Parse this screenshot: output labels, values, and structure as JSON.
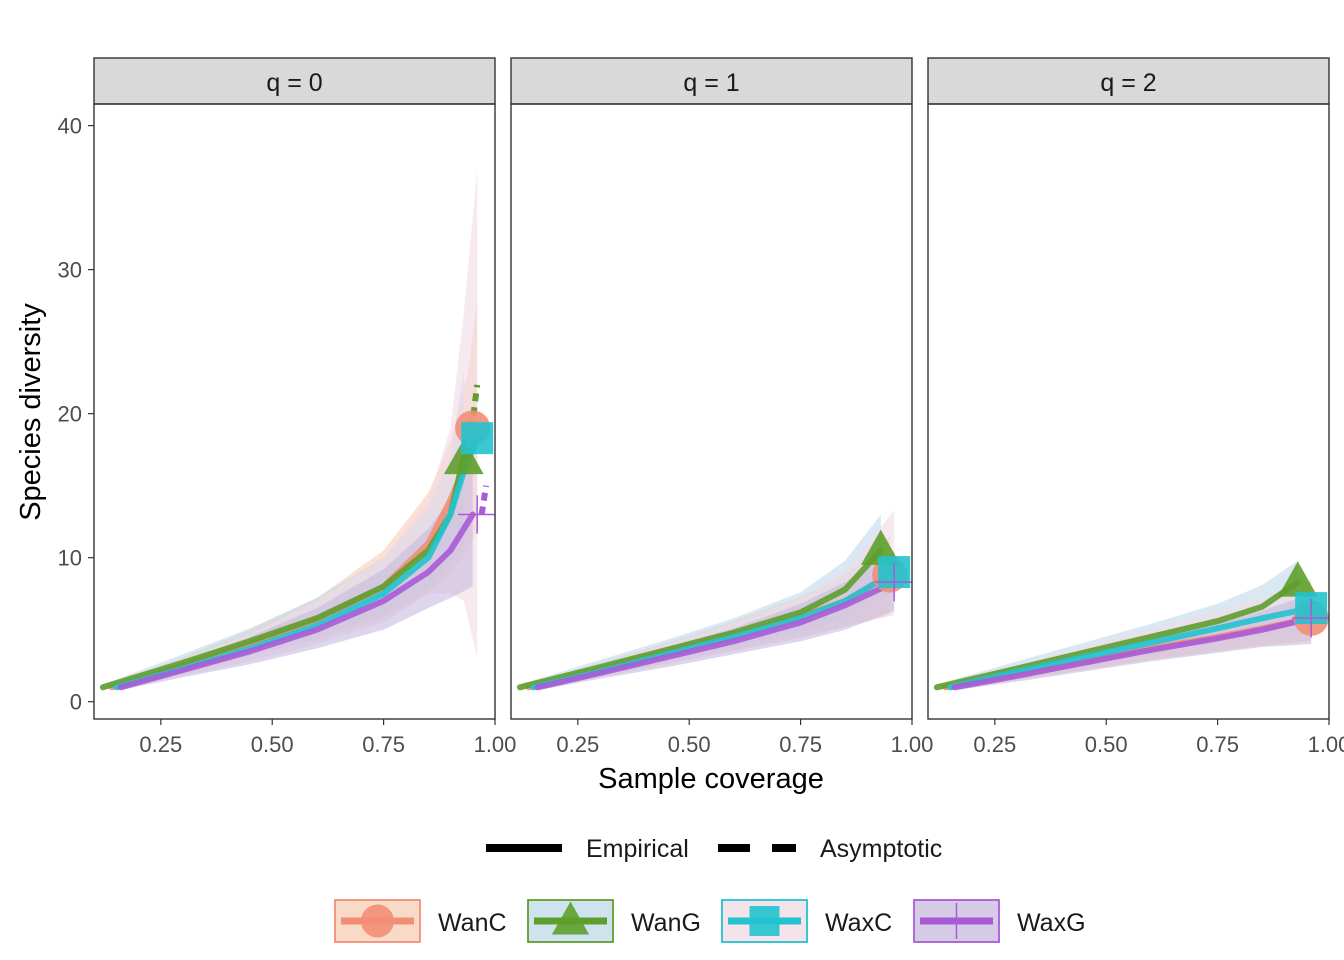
{
  "chart_data": {
    "type": "line",
    "xlabel": "Sample coverage",
    "ylabel": "Species diversity",
    "xlim": [
      0.1,
      1.0
    ],
    "ylim": [
      -1.2,
      41.5
    ],
    "x_ticks": [
      0.25,
      0.5,
      0.75,
      1.0
    ],
    "x_tick_labels": [
      "0.25",
      "0.50",
      "0.75",
      "1.00"
    ],
    "y_ticks": [
      0,
      10,
      20,
      30,
      40
    ],
    "y_tick_labels": [
      "0",
      "10",
      "20",
      "30",
      "40"
    ],
    "grid": false,
    "legend_position": "bottom",
    "linetype_legend": [
      "Empirical",
      "Asymptotic"
    ],
    "series_names": [
      "WanC",
      "WanG",
      "WaxC",
      "WaxG"
    ],
    "colors": {
      "WanC": "#F28E76",
      "WanG": "#5E9E2C",
      "WaxC": "#22C3CF",
      "WaxG": "#A95BD6"
    },
    "fills": {
      "WanC": "#F7CDB3",
      "WanG": "#BFD9EA",
      "WaxC": "#F1DAE6",
      "WaxG": "#C8BADF"
    },
    "markers": {
      "WanC": "circle",
      "WanG": "triangle",
      "WaxC": "square",
      "WaxG": "cross"
    },
    "panels": [
      {
        "label": "q = 0",
        "series": [
          {
            "name": "WanC",
            "x": [
              0.14,
              0.3,
              0.45,
              0.6,
              0.75,
              0.85,
              0.9,
              0.94,
              0.96
            ],
            "y": [
              1,
              2.5,
              4,
              5.7,
              8,
              11,
              14,
              17,
              19
            ],
            "lower": [
              0.8,
              2,
              3.2,
              4.3,
              5.8,
              7.5,
              9,
              10.5,
              12
            ],
            "upper": [
              1.2,
              3.1,
              5,
              7.2,
              10.5,
              14.5,
              18,
              23,
              28
            ],
            "observed": [
              0.95,
              19
            ]
          },
          {
            "name": "WanG",
            "x": [
              0.12,
              0.3,
              0.45,
              0.6,
              0.75,
              0.85,
              0.9,
              0.93
            ],
            "y": [
              1,
              2.7,
              4.2,
              5.8,
              8,
              10.5,
              13,
              17
            ],
            "lower": [
              0.8,
              2.2,
              3.4,
              4.6,
              6,
              7.8,
              9.5,
              11
            ],
            "upper": [
              1.2,
              3.3,
              5.1,
              7.2,
              10,
              13.5,
              17,
              23
            ],
            "observed": [
              0.93,
              16.8
            ],
            "asymptotic": [
              0.94,
              17,
              0.96,
              22
            ]
          },
          {
            "name": "WaxC",
            "x": [
              0.15,
              0.3,
              0.45,
              0.6,
              0.75,
              0.85,
              0.9,
              0.93,
              0.96
            ],
            "y": [
              1,
              2.3,
              3.7,
              5.3,
              7.5,
              10,
              13,
              16,
              18.3
            ],
            "lower": [
              0.8,
              1.8,
              2.8,
              4,
              5.5,
              7.5,
              7.5,
              7,
              3
            ],
            "upper": [
              1.2,
              2.9,
              4.7,
              7,
              10,
              14,
              19,
              27,
              37
            ],
            "observed": [
              0.96,
              18.3
            ]
          },
          {
            "name": "WaxG",
            "x": [
              0.16,
              0.3,
              0.45,
              0.6,
              0.75,
              0.85,
              0.9,
              0.95
            ],
            "y": [
              1,
              2.2,
              3.5,
              5,
              7,
              9,
              10.5,
              13
            ],
            "lower": [
              0.8,
              1.7,
              2.6,
              3.7,
              5,
              6.5,
              7.2,
              8
            ],
            "upper": [
              1.2,
              2.8,
              4.5,
              6.5,
              9.2,
              12,
              14,
              17
            ],
            "observed": [
              0.96,
              13
            ],
            "asymptotic": [
              0.97,
              13,
              0.98,
              15
            ]
          }
        ]
      },
      {
        "label": "q = 1",
        "series": [
          {
            "name": "WanC",
            "x": [
              0.14,
              0.3,
              0.45,
              0.6,
              0.75,
              0.85,
              0.95
            ],
            "y": [
              1,
              2.2,
              3.4,
              4.6,
              5.9,
              7,
              8.8
            ],
            "lower": [
              0.8,
              1.8,
              2.7,
              3.6,
              4.5,
              5.2,
              6
            ],
            "upper": [
              1.2,
              2.7,
              4.1,
              5.6,
              7.3,
              8.8,
              11.5
            ],
            "observed": [
              0.95,
              8.8
            ]
          },
          {
            "name": "WanG",
            "x": [
              0.12,
              0.3,
              0.45,
              0.6,
              0.75,
              0.85,
              0.93
            ],
            "y": [
              1,
              2.4,
              3.6,
              4.8,
              6.2,
              7.8,
              10.5
            ],
            "lower": [
              0.8,
              1.9,
              2.9,
              3.8,
              4.8,
              5.8,
              7.5
            ],
            "upper": [
              1.2,
              2.9,
              4.3,
              5.8,
              7.6,
              9.8,
              13
            ],
            "observed": [
              0.93,
              10.5
            ]
          },
          {
            "name": "WaxC",
            "x": [
              0.15,
              0.3,
              0.45,
              0.6,
              0.75,
              0.85,
              0.96
            ],
            "y": [
              1,
              2.1,
              3.3,
              4.5,
              5.8,
              7,
              9
            ],
            "lower": [
              0.8,
              1.7,
              2.6,
              3.5,
              4.4,
              5.2,
              6
            ],
            "upper": [
              1.2,
              2.6,
              4,
              5.5,
              7.2,
              9,
              13.3
            ],
            "observed": [
              0.96,
              9
            ]
          },
          {
            "name": "WaxG",
            "x": [
              0.16,
              0.3,
              0.45,
              0.6,
              0.75,
              0.85,
              0.96
            ],
            "y": [
              1,
              2,
              3.1,
              4.2,
              5.5,
              6.7,
              8.3
            ],
            "lower": [
              0.8,
              1.6,
              2.4,
              3.3,
              4.2,
              5,
              6.3
            ],
            "upper": [
              1.2,
              2.5,
              3.8,
              5.1,
              6.8,
              8.3,
              10.4
            ],
            "observed": [
              0.96,
              8.3
            ],
            "asymptotic": [
              0.97,
              8.4,
              0.99,
              8.4
            ]
          }
        ]
      },
      {
        "label": "q = 2",
        "series": [
          {
            "name": "WanC",
            "x": [
              0.14,
              0.3,
              0.45,
              0.6,
              0.75,
              0.85,
              0.96
            ],
            "y": [
              1,
              1.9,
              2.8,
              3.7,
              4.5,
              5.1,
              5.8
            ],
            "lower": [
              0.8,
              1.5,
              2.2,
              2.9,
              3.5,
              3.9,
              4.2
            ],
            "upper": [
              1.2,
              2.3,
              3.4,
              4.5,
              5.6,
              6.4,
              7.5
            ],
            "observed": [
              0.96,
              5.8
            ]
          },
          {
            "name": "WanG",
            "x": [
              0.12,
              0.3,
              0.45,
              0.6,
              0.75,
              0.85,
              0.93
            ],
            "y": [
              1,
              2.3,
              3.4,
              4.5,
              5.6,
              6.6,
              8.3
            ],
            "lower": [
              0.8,
              1.8,
              2.7,
              3.6,
              4.4,
              5.1,
              6.3
            ],
            "upper": [
              1.2,
              2.8,
              4.1,
              5.4,
              6.8,
              8.1,
              9.8
            ],
            "observed": [
              0.93,
              8.3
            ]
          },
          {
            "name": "WaxC",
            "x": [
              0.15,
              0.3,
              0.45,
              0.6,
              0.75,
              0.85,
              0.96
            ],
            "y": [
              1,
              2.1,
              3.1,
              4.1,
              5.1,
              5.8,
              6.5
            ],
            "lower": [
              0.8,
              1.7,
              2.4,
              3.2,
              4,
              4.5,
              4.8
            ],
            "upper": [
              1.2,
              2.6,
              3.8,
              5.1,
              6.3,
              7.2,
              8.5
            ],
            "observed": [
              0.96,
              6.5
            ]
          },
          {
            "name": "WaxG",
            "x": [
              0.16,
              0.3,
              0.45,
              0.6,
              0.75,
              0.85,
              0.96
            ],
            "y": [
              1,
              1.8,
              2.7,
              3.6,
              4.4,
              5,
              5.8
            ],
            "lower": [
              0.8,
              1.4,
              2.1,
              2.8,
              3.4,
              3.8,
              4
            ],
            "upper": [
              1.2,
              2.2,
              3.3,
              4.4,
              5.4,
              6.3,
              7.5
            ],
            "observed": [
              0.96,
              5.8
            ],
            "asymptotic": [
              0.97,
              5.8,
              1.0,
              5.8
            ]
          }
        ]
      }
    ]
  }
}
